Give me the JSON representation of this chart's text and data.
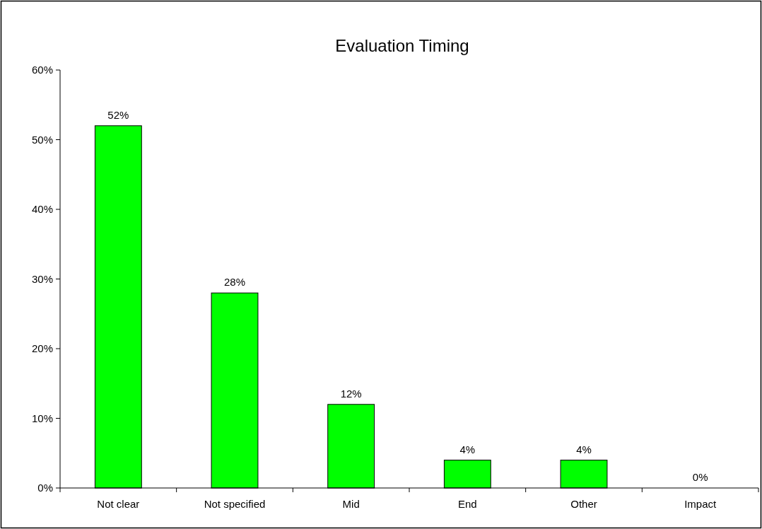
{
  "chart_data": {
    "type": "bar",
    "title": "Evaluation Timing",
    "categories": [
      "Not clear",
      "Not specified",
      "Mid",
      "End",
      "Other",
      "Impact"
    ],
    "values": [
      52,
      28,
      12,
      4,
      4,
      0
    ],
    "value_labels": [
      "52%",
      "28%",
      "12%",
      "4%",
      "4%",
      "0%"
    ],
    "color": "#00ff00",
    "ylim": [
      0,
      60
    ],
    "yticks": [
      {
        "value": 0,
        "label": "0%"
      },
      {
        "value": 10,
        "label": "10%"
      },
      {
        "value": 20,
        "label": "20%"
      },
      {
        "value": 30,
        "label": "30%"
      },
      {
        "value": 40,
        "label": "40%"
      },
      {
        "value": 50,
        "label": "50%"
      },
      {
        "value": 60,
        "label": "60%"
      }
    ],
    "grid": false
  }
}
